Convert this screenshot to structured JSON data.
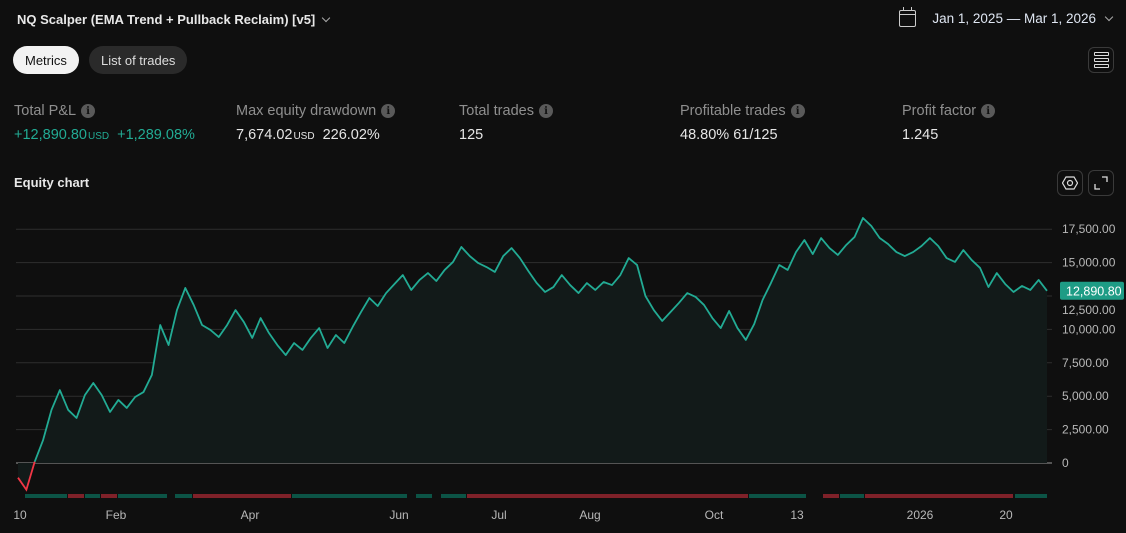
{
  "header": {
    "title": "NQ Scalper (EMA Trend + Pullback Reclaim) [v5]",
    "date_range": "Jan 1, 2025 — Mar 1, 2026",
    "calendar_icon": "calendar-icon",
    "layout_icon": "layout-rows-icon"
  },
  "tabs": [
    {
      "label": "Metrics",
      "active": true
    },
    {
      "label": "List of trades",
      "active": false
    }
  ],
  "metrics": {
    "total_pnl": {
      "label": "Total P&L",
      "value": "+12,890.80",
      "unit": "USD",
      "pct": "+1,289.08%"
    },
    "max_dd": {
      "label": "Max equity drawdown",
      "value": "7,674.02",
      "unit": "USD",
      "pct": "226.02%"
    },
    "total_trades": {
      "label": "Total trades",
      "value": "125"
    },
    "profitable": {
      "label": "Profitable trades",
      "value": "48.80% 61/125"
    },
    "profit_factor": {
      "label": "Profit factor",
      "value": "1.245"
    }
  },
  "colors": {
    "positive": "#22ab94",
    "negative": "#f23645",
    "win_bar": "#0c5446",
    "loss_bar": "#7f2129"
  },
  "chart_data": {
    "type": "line",
    "title": "Equity chart",
    "ylim": [
      -2500,
      18500
    ],
    "yticks": [
      "0",
      "2,500.00",
      "5,000.00",
      "7,500.00",
      "10,000.00",
      "12,500.00",
      "15,000.00",
      "17,500.00"
    ],
    "ytick_values": [
      0,
      2500,
      5000,
      7500,
      10000,
      12500,
      15000,
      17500
    ],
    "xtick_labels": [
      "10",
      "Feb",
      "Apr",
      "Jun",
      "Jul",
      "Aug",
      "Oct",
      "13",
      "2026",
      "20"
    ],
    "last_value_label": "12,890.80",
    "grid": true,
    "values": [
      -1100,
      -2000,
      100,
      1720,
      3970,
      5460,
      3970,
      3370,
      5090,
      5990,
      5090,
      3820,
      4720,
      4120,
      4940,
      5310,
      6590,
      10330,
      8830,
      11450,
      13100,
      11830,
      10330,
      9960,
      9430,
      10330,
      11450,
      10550,
      9360,
      10850,
      9730,
      8830,
      8080,
      8980,
      8460,
      9360,
      10100,
      8610,
      9580,
      8980,
      10180,
      11300,
      12350,
      11750,
      12720,
      13400,
      14070,
      12950,
      13700,
      14220,
      13620,
      14450,
      15050,
      16170,
      15490,
      14970,
      14670,
      14300,
      15490,
      16090,
      15340,
      14370,
      13470,
      12800,
      13170,
      14070,
      13320,
      12720,
      13470,
      12950,
      13550,
      13320,
      14070,
      15340,
      14820,
      12500,
      11450,
      10630,
      11300,
      11980,
      12720,
      12430,
      11830,
      10850,
      10100,
      11380,
      10100,
      9210,
      10400,
      12200,
      13470,
      14820,
      14450,
      15790,
      16690,
      15640,
      16840,
      16090,
      15570,
      16320,
      16920,
      18340,
      17740,
      16840,
      16390,
      15790,
      15490,
      15790,
      16240,
      16840,
      16240,
      15340,
      15050,
      15940,
      15190,
      14600,
      13170,
      14220,
      13400,
      12800,
      13250,
      12950,
      13700,
      12890.8
    ],
    "trade_strip": [
      "win",
      "loss",
      "win",
      "loss",
      "win",
      "win",
      "loss",
      "win",
      "win",
      "win",
      "loss",
      "win",
      "loss",
      "win",
      "loss",
      "win"
    ]
  },
  "toolbar": {
    "settings_icon": "settings-icon",
    "expand_icon": "expand-icon"
  }
}
